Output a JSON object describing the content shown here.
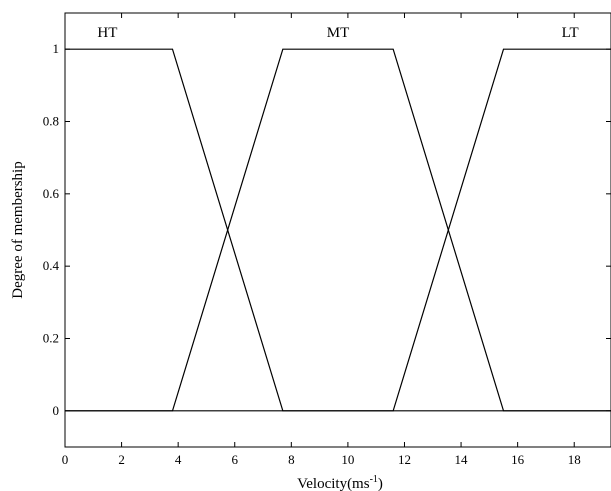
{
  "chart_data": {
    "type": "line",
    "xlabel": "Velocity(ms",
    "xlabel_sup": "-1",
    "xlabel_end": ")",
    "ylabel": "Degree of membership",
    "xlim": [
      0,
      19.3
    ],
    "ylim": [
      -0.1,
      1.1
    ],
    "xticks": [
      0,
      2,
      4,
      6,
      8,
      10,
      12,
      14,
      16,
      18
    ],
    "yticks": [
      0,
      0.2,
      0.4,
      0.6,
      0.8,
      1
    ],
    "ytick_labels": [
      "0",
      "0.2",
      "0.4",
      "0.6",
      "0.8",
      "1"
    ],
    "series": [
      {
        "name": "HT",
        "x": [
          0,
          3.8,
          7.7,
          19.3
        ],
        "y": [
          1,
          1,
          0,
          0
        ]
      },
      {
        "name": "MT",
        "x": [
          0,
          3.8,
          7.7,
          11.6,
          15.5,
          19.3
        ],
        "y": [
          0,
          0,
          1,
          1,
          0,
          0
        ]
      },
      {
        "name": "LT",
        "x": [
          0,
          11.6,
          15.5,
          19.3
        ],
        "y": [
          0,
          0,
          1,
          1
        ]
      }
    ]
  }
}
